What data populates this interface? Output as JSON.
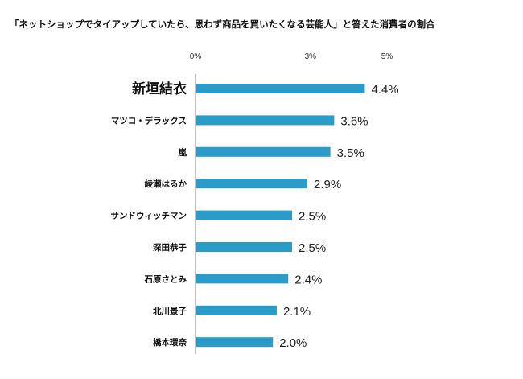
{
  "chart_data": {
    "type": "bar",
    "orientation": "horizontal",
    "title": "「ネットショップでタイアップしていたら、思わず商品を買いたくなる芸能人」と答えた消費者の割合",
    "categories": [
      "新垣結衣",
      "マツコ・デラックス",
      "嵐",
      "綾瀬はるか",
      "サンドウィッチマン",
      "深田恭子",
      "石原さとみ",
      "北川景子",
      "橋本環奈"
    ],
    "values": [
      4.4,
      3.6,
      3.5,
      2.9,
      2.5,
      2.5,
      2.4,
      2.1,
      2.0
    ],
    "value_labels": [
      "4.4%",
      "3.6%",
      "3.5%",
      "2.9%",
      "2.5%",
      "2.5%",
      "2.4%",
      "2.1%",
      "2.0%"
    ],
    "xticks": [
      0,
      3,
      5
    ],
    "xtick_labels": [
      "0%",
      "3%",
      "5%"
    ],
    "xlim": [
      0,
      5
    ],
    "xaxis_position": "top",
    "grid": false,
    "legend": "none",
    "bar_color": "#2b9cc9",
    "emphasized_category": "新垣結衣"
  }
}
